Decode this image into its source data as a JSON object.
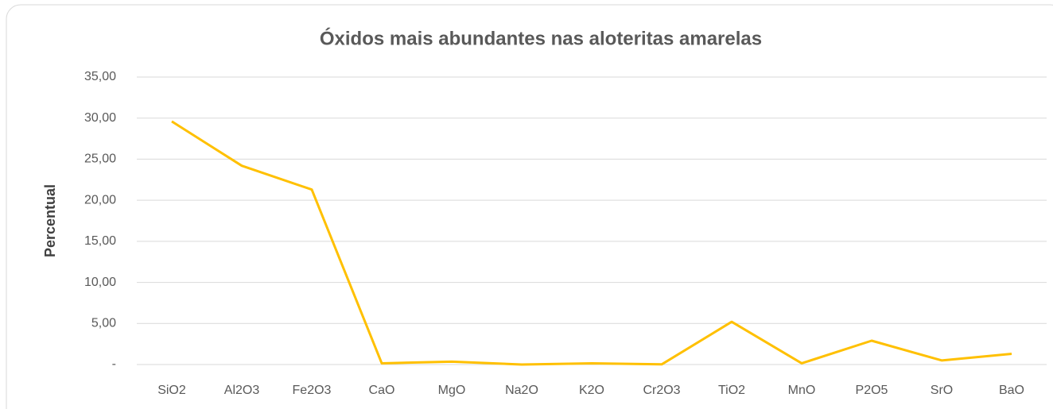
{
  "chart_data": {
    "type": "line",
    "title": "Óxidos mais abundantes nas aloteritas amarelas",
    "y_label": "Percentual",
    "categories": [
      "SiO2",
      "Al2O3",
      "Fe2O3",
      "CaO",
      "MgO",
      "Na2O",
      "K2O",
      "Cr2O3",
      "TiO2",
      "MnO",
      "P2O5",
      "SrO",
      "BaO"
    ],
    "series": [
      {
        "name": "Percentual",
        "color": "#ffc000",
        "values": [
          29.6,
          24.2,
          21.3,
          0.15,
          0.35,
          0.0,
          0.15,
          0.02,
          5.2,
          0.15,
          2.9,
          0.5,
          1.3
        ]
      }
    ],
    "ylim": [
      0,
      35
    ],
    "yticks": [
      {
        "value": 0,
        "label": "-"
      },
      {
        "value": 5,
        "label": "5,00"
      },
      {
        "value": 10,
        "label": "10,00"
      },
      {
        "value": 15,
        "label": "15,00"
      },
      {
        "value": 20,
        "label": "20,00"
      },
      {
        "value": 25,
        "label": "25,00"
      },
      {
        "value": 30,
        "label": "30,00"
      },
      {
        "value": 35,
        "label": "35,00"
      }
    ],
    "grid": true
  }
}
